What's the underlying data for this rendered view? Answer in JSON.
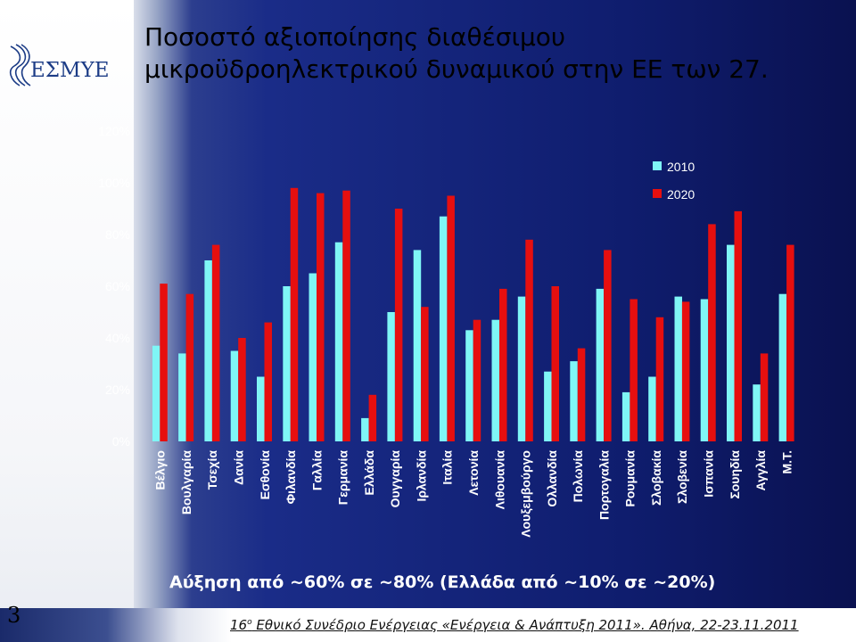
{
  "slide": {
    "title_line1": "Ποσοστό αξιοποίησης διαθέσιμου",
    "title_line2": "μικροϋδροηλεκτρικού δυναμικού στην ΕΕ των 27.",
    "logo_text": "ΕΣΜΥΕ",
    "summary": "Αύξηση από ~60% σε ~80% (Ελλάδα από ~10% σε ~20%)",
    "page_number": "3",
    "footer_ordinal": "16",
    "footer_sup": "ο",
    "footer_rest": " Εθνικό Συνέδριο Ενέργειας «Ενέργεια & Ανάπτυξη 2011». Αθήνα, 22-23.11.2011"
  },
  "colors": {
    "series_2010": "#7ff6f6",
    "series_2020": "#e60f0f",
    "text_light": "#ffffff"
  },
  "chart_data": {
    "type": "bar",
    "title": "",
    "xlabel": "",
    "ylabel": "",
    "ylim": [
      0,
      120
    ],
    "yticks": [
      "0%",
      "20%",
      "40%",
      "60%",
      "80%",
      "100%",
      "120%"
    ],
    "grid": false,
    "legend_position": "top-right",
    "categories": [
      "Βέλγιο",
      "Βουλγαρία",
      "Τσεχία",
      "Δανία",
      "Εσθονία",
      "Φιλανδία",
      "Γαλλία",
      "Γερμανία",
      "Ελλάδα",
      "Ουγγαρία",
      "Ιρλανδία",
      "Ιταλία",
      "Λετονία",
      "Λιθουανία",
      "Λουξεμβούργο",
      "Ολλανδία",
      "Πολωνία",
      "Πορτογαλία",
      "Ρουμανία",
      "Σλοβακία",
      "Σλοβενία",
      "Ισπανία",
      "Σουηδία",
      "Αγγλία",
      "Μ.Τ."
    ],
    "series": [
      {
        "name": "2010",
        "values": [
          37,
          34,
          70,
          35,
          25,
          60,
          65,
          77,
          9,
          50,
          74,
          87,
          43,
          47,
          56,
          27,
          31,
          59,
          19,
          25,
          56,
          55,
          76,
          22,
          57
        ]
      },
      {
        "name": "2020",
        "values": [
          61,
          57,
          76,
          40,
          46,
          98,
          96,
          97,
          18,
          90,
          52,
          95,
          47,
          59,
          78,
          60,
          36,
          74,
          55,
          48,
          54,
          84,
          89,
          34,
          76
        ]
      }
    ]
  }
}
